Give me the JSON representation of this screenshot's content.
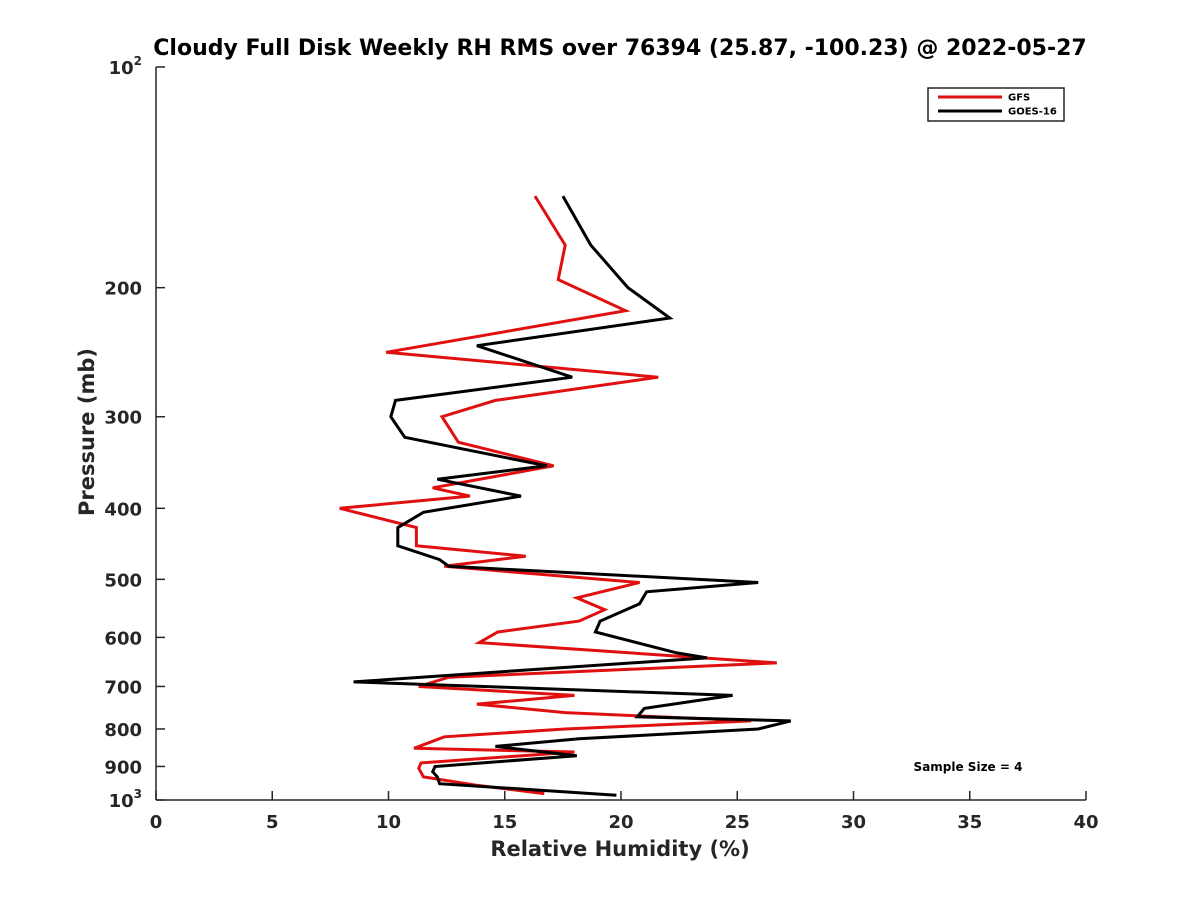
{
  "chart_data": {
    "type": "line",
    "title": "Cloudy Full Disk Weekly RH RMS over 76394 (25.87, -100.23) @ 2022-05-27",
    "xlabel": "Relative Humidity (%)",
    "ylabel": "Pressure (mb)",
    "xlim": [
      0,
      40
    ],
    "ylim": [
      100,
      1000
    ],
    "y_scale": "log",
    "y_reversed": true,
    "grid": false,
    "legend_position": "top-right",
    "x_ticks": [
      "0",
      "5",
      "10",
      "15",
      "20",
      "25",
      "30",
      "35",
      "40"
    ],
    "y_ticks": [
      {
        "value": 100,
        "base": "10",
        "exp": "2"
      },
      {
        "value": 200,
        "label": "200"
      },
      {
        "value": 300,
        "label": "300"
      },
      {
        "value": 400,
        "label": "400"
      },
      {
        "value": 500,
        "label": "500"
      },
      {
        "value": 600,
        "label": "600"
      },
      {
        "value": 700,
        "label": "700"
      },
      {
        "value": 800,
        "label": "800"
      },
      {
        "value": 900,
        "label": "900"
      },
      {
        "value": 1000,
        "base": "10",
        "exp": "3"
      }
    ],
    "annotation": "Sample Size = 4",
    "series": [
      {
        "name": "GFS",
        "color": "#e01010",
        "points": [
          [
            16.3,
            150
          ],
          [
            17.6,
            175
          ],
          [
            17.3,
            195
          ],
          [
            20.2,
            215
          ],
          [
            9.9,
            245
          ],
          [
            21.6,
            265
          ],
          [
            14.6,
            285
          ],
          [
            12.3,
            300
          ],
          [
            13,
            325
          ],
          [
            17.1,
            350
          ],
          [
            11.9,
            375
          ],
          [
            13.5,
            385
          ],
          [
            7.9,
            400
          ],
          [
            11.2,
            425
          ],
          [
            11.2,
            450
          ],
          [
            15.9,
            465
          ],
          [
            12.4,
            480
          ],
          [
            20.8,
            505
          ],
          [
            18.1,
            530
          ],
          [
            19.3,
            550
          ],
          [
            18.2,
            570
          ],
          [
            14.7,
            590
          ],
          [
            13.9,
            610
          ],
          [
            26.7,
            650
          ],
          [
            12.6,
            680
          ],
          [
            11.3,
            700
          ],
          [
            18,
            720
          ],
          [
            13.8,
            740
          ],
          [
            17.6,
            760
          ],
          [
            25.6,
            780
          ],
          [
            17.6,
            800
          ],
          [
            12.4,
            820
          ],
          [
            11.1,
            850
          ],
          [
            18,
            860
          ],
          [
            11.4,
            890
          ],
          [
            11.3,
            905
          ],
          [
            11.5,
            930
          ],
          [
            13.8,
            955
          ],
          [
            16.7,
            980
          ]
        ]
      },
      {
        "name": "GOES-16",
        "color": "#000000",
        "points": [
          [
            17.5,
            150
          ],
          [
            18.7,
            175
          ],
          [
            20.3,
            200
          ],
          [
            22.1,
            220
          ],
          [
            13.8,
            240
          ],
          [
            17.9,
            265
          ],
          [
            10.3,
            285
          ],
          [
            10.1,
            300
          ],
          [
            10.7,
            320
          ],
          [
            16.8,
            350
          ],
          [
            12.1,
            365
          ],
          [
            15.7,
            385
          ],
          [
            11.5,
            405
          ],
          [
            10.4,
            425
          ],
          [
            10.4,
            450
          ],
          [
            12.2,
            470
          ],
          [
            12.6,
            480
          ],
          [
            25.9,
            505
          ],
          [
            21.1,
            520
          ],
          [
            20.8,
            540
          ],
          [
            19.1,
            570
          ],
          [
            18.9,
            590
          ],
          [
            22.4,
            630
          ],
          [
            23.7,
            640
          ],
          [
            17.4,
            660
          ],
          [
            8.5,
            690
          ],
          [
            24.8,
            720
          ],
          [
            21,
            750
          ],
          [
            20.7,
            770
          ],
          [
            27.3,
            780
          ],
          [
            25.9,
            800
          ],
          [
            18.2,
            825
          ],
          [
            14.6,
            845
          ],
          [
            18.1,
            870
          ],
          [
            12,
            900
          ],
          [
            11.9,
            915
          ],
          [
            12.1,
            930
          ],
          [
            12.2,
            950
          ],
          [
            19.8,
            985
          ]
        ]
      }
    ]
  }
}
